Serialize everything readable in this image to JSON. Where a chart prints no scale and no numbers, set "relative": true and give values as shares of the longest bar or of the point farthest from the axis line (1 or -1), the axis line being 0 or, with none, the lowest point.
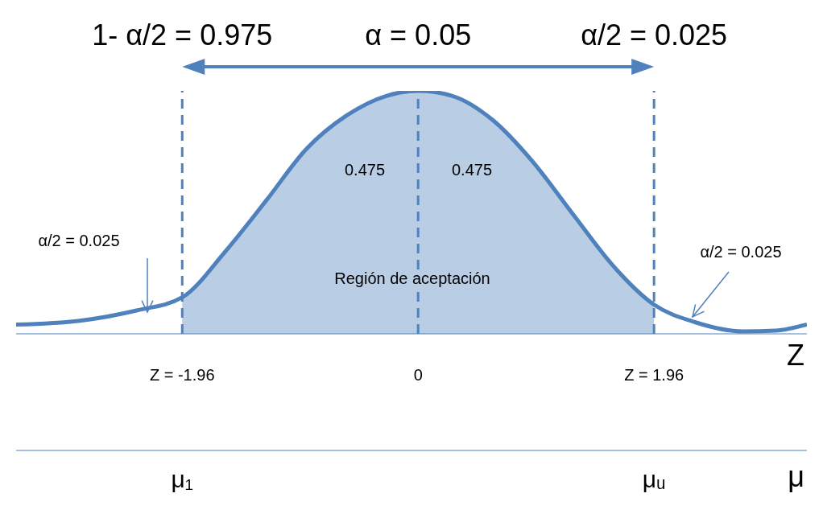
{
  "chart_data": {
    "type": "line",
    "relative": true,
    "xlabel": "Z",
    "x2label": "μ",
    "xlim": [
      -3.34,
      3.23
    ],
    "xticks": [
      {
        "value": -1.96,
        "label": "Z = -1.96"
      },
      0,
      {
        "value": 1.96,
        "label": "Z = 1.96"
      }
    ],
    "series": [
      {
        "type": "area",
        "color": "#b9cde5",
        "x": [
          -1.96,
          -1.6,
          -1.26,
          -0.93,
          -0.59,
          -0.26,
          0,
          0.28,
          0.62,
          0.95,
          1.29,
          1.62,
          1.96
        ],
        "values": [
          0.15,
          0.34,
          0.55,
          0.76,
          0.9,
          0.98,
          1,
          0.98,
          0.88,
          0.71,
          0.49,
          0.28,
          0.12
        ]
      },
      {
        "color": "#4f81bd",
        "x": [
          -3.34,
          -2.81,
          -2.34,
          -1.96,
          -1.6,
          -1.26,
          -0.93,
          -0.59,
          -0.26,
          0,
          0.28,
          0.62,
          0.95,
          1.29,
          1.62,
          1.96,
          2.3,
          2.7,
          2.97,
          3.23
        ],
        "values": [
          0.038,
          0.054,
          0.096,
          0.15,
          0.34,
          0.55,
          0.76,
          0.9,
          0.98,
          1,
          0.98,
          0.88,
          0.71,
          0.49,
          0.28,
          0.12,
          0.048,
          0.01,
          0.013,
          0.038
        ]
      }
    ],
    "ref_lines": [
      {
        "axis": "x",
        "value": -1.96,
        "label": null,
        "color": "#4f81bd",
        "line_style": "dashed"
      },
      {
        "axis": "x",
        "value": 0,
        "label": null,
        "color": "#4f81bd",
        "line_style": "dashed"
      },
      {
        "axis": "x",
        "value": 1.96,
        "label": null,
        "color": "#4f81bd",
        "line_style": "dashed"
      }
    ],
    "annotations": [
      "1- α/2 = 0.975",
      "α = 0.05",
      "α/2 = 0.025",
      "0.475",
      "0.475",
      "Región de aceptación",
      "α/2 = 0.025",
      "α/2 = 0.025",
      "μ₁",
      "μᵤ"
    ],
    "legend": false,
    "grid": false
  }
}
